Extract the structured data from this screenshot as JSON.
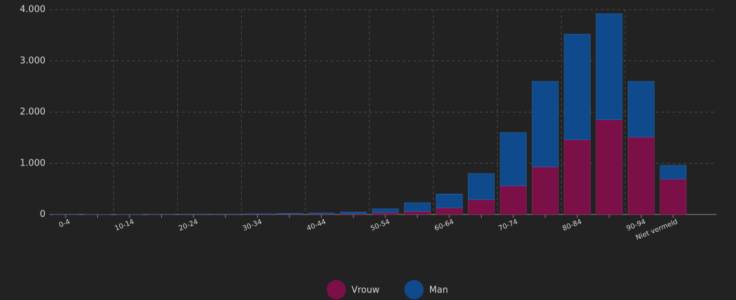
{
  "chart_data": {
    "type": "stacked_bar",
    "categories": [
      "0-4",
      null,
      "10-14",
      null,
      "20-24",
      null,
      "30-34",
      null,
      "40-44",
      null,
      "50-54",
      null,
      "60-64",
      null,
      "70-74",
      null,
      "80-84",
      null,
      "90-94",
      "Niet vermeld"
    ],
    "series": [
      {
        "name": "Vrouw",
        "color": "#7b1048",
        "values": [
          2,
          1,
          1,
          2,
          3,
          3,
          5,
          8,
          10,
          15,
          35,
          60,
          130,
          290,
          560,
          930,
          1460,
          1850,
          1510,
          690
        ]
      },
      {
        "name": "Man",
        "color": "#0f4a8c",
        "values": [
          3,
          1,
          2,
          3,
          5,
          5,
          8,
          15,
          20,
          35,
          75,
          170,
          270,
          510,
          1040,
          1670,
          2060,
          2070,
          1090,
          270
        ]
      }
    ],
    "ylim": [
      0,
      4000
    ],
    "yticks": [
      0,
      {
        "value": 1000,
        "label": "1.000"
      },
      {
        "value": 2000,
        "label": "2.000"
      },
      {
        "value": 3000,
        "label": "3.000"
      },
      {
        "value": 4000,
        "label": "4.000"
      }
    ],
    "grid": true,
    "legend": "bottom"
  }
}
